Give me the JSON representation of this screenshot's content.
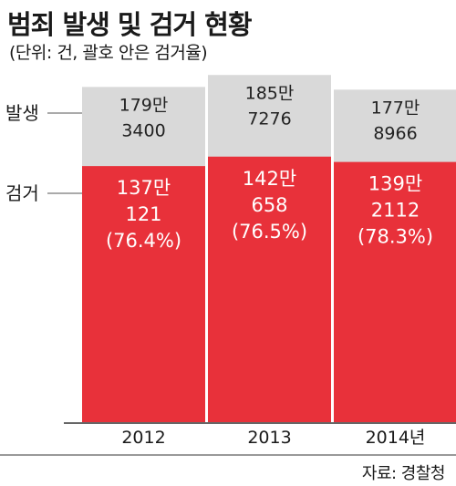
{
  "header": {
    "title": "범죄 발생 및 검거 현황",
    "subtitle": "(단위: 건, 괄호 안은 검거율)"
  },
  "source": "자료: 경찰청",
  "colors": {
    "occurred": "#d9d9d9",
    "arrested": "#e8313a",
    "axis": "#333333"
  },
  "chart_data": {
    "type": "bar",
    "stacked": true,
    "categories": [
      "2012",
      "2013",
      "2014년"
    ],
    "series": [
      {
        "name": "발생",
        "values": [
          1793400,
          1857276,
          1778966
        ],
        "labels": [
          [
            "179만",
            "3400"
          ],
          [
            "185만",
            "7276"
          ],
          [
            "177만",
            "8966"
          ]
        ]
      },
      {
        "name": "검거",
        "values": [
          1370121,
          1420658,
          1392112
        ],
        "labels": [
          [
            "137만",
            "121",
            "(76.4%)"
          ],
          [
            "142만",
            "658",
            "(76.5%)"
          ],
          [
            "139만",
            "2112",
            "(78.3%)"
          ]
        ]
      }
    ],
    "legend": [
      "발생",
      "검거"
    ],
    "legend_position": "left"
  }
}
